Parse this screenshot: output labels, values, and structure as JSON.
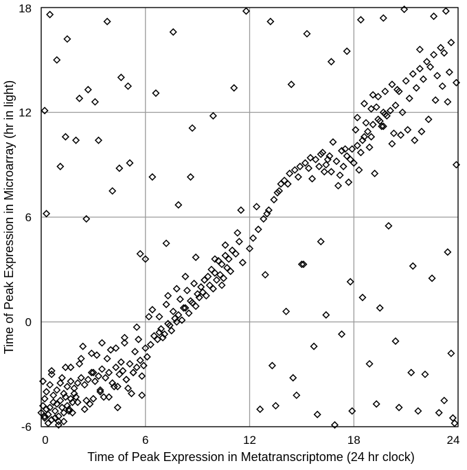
{
  "chart_data": {
    "type": "scatter",
    "title": "",
    "xlabel": "Time of Peak Expression in Metatranscriptome (24 hr clock)",
    "ylabel": "Time of Peak Expression in Microarray (hr in light)",
    "xlim": [
      0,
      24
    ],
    "ylim": [
      -6,
      18
    ],
    "xticks": [
      "0",
      "6",
      "12",
      "18",
      "24"
    ],
    "yticks": [
      "-6",
      "0",
      "6",
      "12",
      "18"
    ],
    "grid": true,
    "legend": "none",
    "marker": "diamond-open",
    "series": [
      {
        "x": [
          0.0,
          0.1,
          0.2,
          0.3,
          0.2,
          0.4,
          0.5,
          0.6,
          0.7,
          0.8,
          0.9,
          1.0,
          1.1,
          1.2,
          1.3,
          1.4,
          1.5,
          1.6,
          1.7,
          1.8,
          1.9,
          2.0,
          0.3,
          0.5,
          0.7,
          0.9,
          1.1,
          1.3,
          1.5,
          1.7,
          1.9,
          2.1,
          2.3,
          2.5,
          2.7,
          2.9,
          3.1,
          3.3,
          3.5,
          3.7,
          3.9,
          4.1,
          4.3,
          4.5,
          4.7,
          4.9,
          5.1,
          5.3,
          5.5,
          5.7,
          5.9,
          6.1,
          2.2,
          2.6,
          3.0,
          3.4,
          3.8,
          4.2,
          4.6,
          5.0,
          5.4,
          5.8,
          0.6,
          1.0,
          1.4,
          1.8,
          2.4,
          2.8,
          3.2,
          3.6,
          4.0,
          4.4,
          4.8,
          5.2,
          5.6,
          6.0,
          6.3,
          6.5,
          6.7,
          6.9,
          7.1,
          7.3,
          7.5,
          7.7,
          7.9,
          8.1,
          8.3,
          8.5,
          8.7,
          8.9,
          9.1,
          9.3,
          9.5,
          9.7,
          9.9,
          10.1,
          10.3,
          10.5,
          10.7,
          10.9,
          6.4,
          6.8,
          7.2,
          7.6,
          8.0,
          8.4,
          8.8,
          9.2,
          9.6,
          10.0,
          10.4,
          10.8,
          11.2,
          11.6,
          12.0,
          7.0,
          7.4,
          7.8,
          8.2,
          8.6,
          9.0,
          9.4,
          9.8,
          10.2,
          10.6,
          11.0,
          11.4,
          12.2,
          12.5,
          12.8,
          13.1,
          13.4,
          13.7,
          14.0,
          14.3,
          14.6,
          14.9,
          15.2,
          15.5,
          15.8,
          16.1,
          16.4,
          16.7,
          17.0,
          17.3,
          17.6,
          17.9,
          18.2,
          18.5,
          18.8,
          19.1,
          19.4,
          19.7,
          20.0,
          12.4,
          13.0,
          13.6,
          14.2,
          14.8,
          15.4,
          16.0,
          16.6,
          17.2,
          17.8,
          18.4,
          19.0,
          19.6,
          20.2,
          16.2,
          16.8,
          17.4,
          18.0,
          18.6,
          19.2,
          15.6,
          16.3,
          17.1,
          17.7,
          18.3,
          18.9,
          16.5,
          17.5,
          18.1,
          18.7,
          19.3,
          19.8,
          20.3,
          18.2,
          18.6,
          19.0,
          19.4,
          19.8,
          20.2,
          20.6,
          21.0,
          21.4,
          21.8,
          22.2,
          22.6,
          23.0,
          23.4,
          19.1,
          19.5,
          19.9,
          20.4,
          20.8,
          21.2,
          21.6,
          22.0,
          22.4,
          22.8,
          23.2,
          23.6,
          23.9,
          20.1,
          20.5,
          19.7,
          20.7,
          21.1,
          21.5,
          21.9,
          22.3,
          22.7,
          23.1,
          23.5,
          23.8,
          0.2,
          0.4,
          0.8,
          1.0,
          1.3,
          1.6,
          2.1,
          2.5,
          3.0,
          3.4,
          3.9,
          4.4,
          4.9,
          5.3,
          5.8,
          0.1,
          0.6,
          1.2,
          1.7,
          2.3,
          2.9,
          3.5,
          4.3,
          4.8,
          5.5,
          6.2,
          6.8,
          7.3,
          7.8,
          8.3,
          8.9,
          9.4,
          10.0,
          10.6,
          11.3,
          11.8,
          0.5,
          1.5,
          2.7,
          3.8,
          5.0,
          6.6,
          7.6,
          8.7,
          9.9,
          11.1,
          13.2,
          14.4,
          15.3,
          16.7,
          17.6,
          18.4,
          19.7,
          20.9,
          21.8,
          22.6,
          23.3,
          23.7,
          12.6,
          13.5,
          14.7,
          15.9,
          16.9,
          17.9,
          19.3,
          20.6,
          21.7,
          22.9,
          23.6,
          13.3,
          14.5,
          15.7,
          17.3,
          18.9,
          20.4,
          21.3,
          22.1,
          23.2,
          23.9,
          0.3,
          1.1,
          2.0,
          3.1,
          4.1,
          5.1,
          6.4,
          7.9,
          10.4,
          12.9,
          14.1,
          15.1,
          16.4,
          0.2,
          1.4,
          2.6,
          4.6,
          5.7,
          0.9,
          2.2,
          3.3,
          4.5,
          6.0,
          7.2,
          8.6,
          11.5,
          13.8,
          15.0,
          16.1,
          17.8,
          18.5,
          19.5,
          21.4,
          22.5,
          23.4
        ],
        "y": [
          -5.2,
          -4.8,
          -5.5,
          -5.0,
          -4.4,
          -5.3,
          -4.9,
          -5.6,
          -4.6,
          -5.1,
          -4.7,
          -5.4,
          -4.5,
          -4.9,
          -5.2,
          -4.3,
          -4.8,
          -5.0,
          -4.4,
          -4.6,
          -4.1,
          -4.3,
          -4.0,
          -3.6,
          -4.2,
          -3.9,
          -3.5,
          -4.1,
          -3.7,
          -3.4,
          -3.8,
          -3.5,
          -3.2,
          -3.6,
          -3.3,
          -2.9,
          -3.4,
          -3.1,
          -2.7,
          -3.2,
          -2.9,
          -3.5,
          -2.6,
          -3.0,
          -2.8,
          -3.3,
          -2.4,
          -2.9,
          -2.6,
          -2.2,
          -2.5,
          -2.0,
          -2.4,
          -4.5,
          -2.9,
          -4.0,
          -2.1,
          -3.7,
          -2.3,
          -3.8,
          -1.7,
          -3.1,
          -3.0,
          -5.7,
          -2.6,
          -5.2,
          -1.4,
          -4.7,
          -1.9,
          -4.3,
          -1.6,
          -4.9,
          -1.2,
          -4.1,
          -1.0,
          -1.5,
          -1.3,
          -0.8,
          -1.0,
          -0.4,
          -0.7,
          -0.1,
          -0.5,
          0.2,
          0.4,
          0.1,
          0.8,
          0.5,
          1.1,
          0.9,
          1.4,
          1.7,
          1.5,
          2.1,
          1.9,
          2.4,
          2.7,
          2.5,
          3.1,
          2.9,
          0.7,
          0.3,
          1.0,
          0.6,
          1.3,
          1.8,
          2.2,
          2.0,
          2.6,
          2.8,
          3.3,
          3.6,
          3.9,
          3.4,
          4.2,
          -0.9,
          -0.2,
          0.0,
          0.8,
          1.2,
          1.6,
          2.4,
          3.0,
          3.5,
          3.8,
          4.1,
          4.6,
          4.8,
          5.3,
          5.9,
          6.4,
          7.0,
          7.5,
          8.1,
          8.5,
          8.7,
          8.9,
          9.1,
          9.4,
          9.3,
          9.6,
          9.0,
          8.6,
          9.2,
          9.8,
          9.5,
          9.9,
          10.1,
          10.4,
          10.9,
          11.3,
          11.6,
          12.0,
          5.5,
          6.6,
          6.2,
          7.4,
          7.9,
          8.3,
          8.8,
          8.9,
          9.5,
          8.4,
          9.3,
          9.7,
          10.6,
          11.2,
          10.2,
          9.7,
          10.3,
          8.9,
          9.1,
          10.6,
          8.5,
          8.2,
          8.6,
          7.8,
          8.0,
          8.7,
          10.0,
          9.3,
          9.9,
          11.0,
          11.4,
          12.3,
          11.9,
          10.8,
          11.7,
          12.5,
          12.2,
          12.9,
          13.2,
          13.6,
          13.2,
          13.8,
          14.2,
          14.5,
          14.9,
          15.3,
          15.7,
          12.6,
          13.0,
          11.5,
          11.8,
          12.4,
          12.0,
          12.8,
          13.4,
          13.9,
          14.6,
          14.1,
          15.4,
          16.0,
          13.7,
          12.1,
          13.3,
          11.2,
          10.7,
          11.0,
          10.4,
          10.9,
          11.6,
          12.7,
          13.5,
          14.3,
          -5.8,
          -5.4,
          -5.8,
          -5.5,
          -5.9,
          -5.7,
          -5.1,
          -4.6,
          -5.0,
          -4.4,
          -3.9,
          -4.3,
          -3.7,
          -3.3,
          -2.9,
          -4.2,
          -3.4,
          -2.8,
          -3.2,
          -2.6,
          -2.1,
          -1.8,
          -1.2,
          -1.5,
          -0.9,
          -0.3,
          0.3,
          -0.6,
          1.5,
          1.9,
          2.6,
          3.7,
          2.4,
          3.6,
          4.4,
          5.1,
          17.8,
          17.6,
          16.2,
          13.3,
          17.2,
          13.5,
          13.1,
          16.6,
          11.1,
          11.8,
          13.4,
          17.2,
          13.6,
          16.5,
          14.9,
          15.5,
          17.3,
          17.4,
          17.9,
          15.6,
          17.5,
          17.8,
          -5.5,
          -5.0,
          -4.8,
          -4.2,
          -5.3,
          -5.9,
          -5.1,
          -4.7,
          -4.9,
          -5.1,
          -5.2,
          -1.8,
          -2.5,
          -3.2,
          -1.4,
          -0.7,
          -2.4,
          -1.1,
          -2.9,
          -3.0,
          -4.5,
          9.0,
          6.2,
          8.9,
          10.4,
          12.6,
          7.5,
          9.1,
          8.3,
          6.7,
          2.1,
          2.7,
          0.6,
          3.3,
          0.4,
          12.1,
          10.6,
          5.9,
          14.0,
          3.9,
          15.0,
          12.8,
          10.4,
          8.8,
          3.6,
          4.5,
          8.3,
          6.4,
          7.9,
          3.3,
          4.6,
          2.3,
          1.4,
          0.8,
          3.2,
          2.5,
          4.0
        ]
      }
    ]
  }
}
